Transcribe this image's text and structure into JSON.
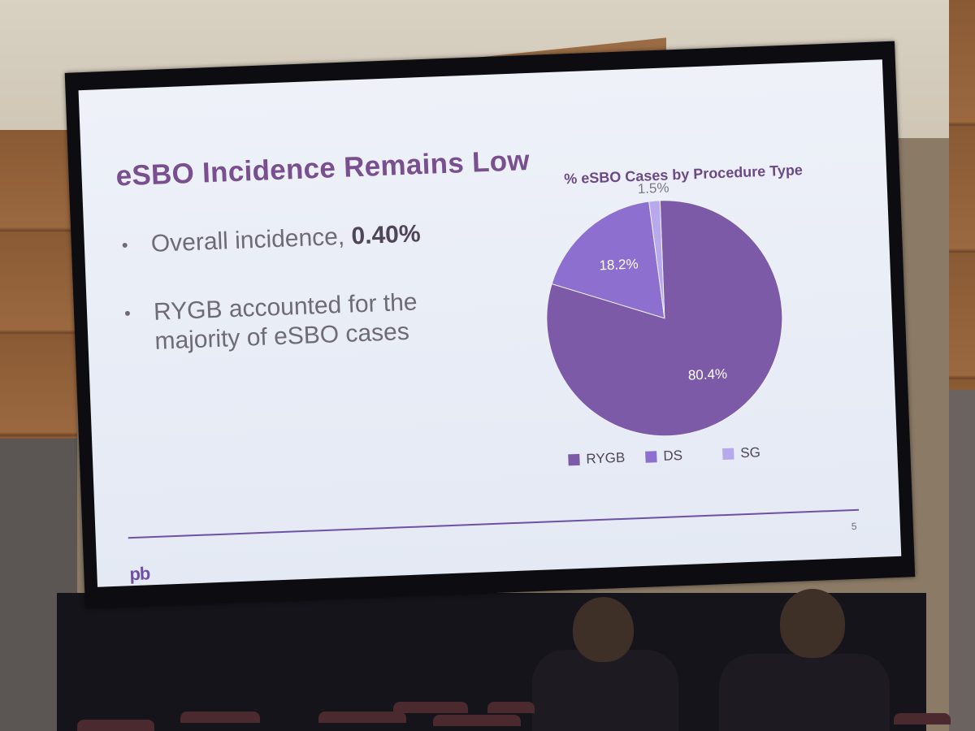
{
  "slide": {
    "title": "eSBO Incidence Remains Low",
    "bullets": [
      {
        "text": "Overall incidence, ",
        "strong": "0.40%"
      },
      {
        "text": "RYGB accounted for the majority of eSBO cases",
        "strong": ""
      }
    ],
    "page_number": "5",
    "logo": "pb"
  },
  "chart_data": {
    "type": "pie",
    "title": "% eSBO Cases by Procedure Type",
    "categories": [
      "RYGB",
      "DS",
      "SG"
    ],
    "values": [
      80.4,
      18.2,
      1.5
    ],
    "labels": [
      "80.4%",
      "18.2%",
      "1.5%"
    ],
    "colors": [
      "#7d5aa8",
      "#8d6fd0",
      "#b7a9ec"
    ],
    "legend_position": "bottom"
  }
}
